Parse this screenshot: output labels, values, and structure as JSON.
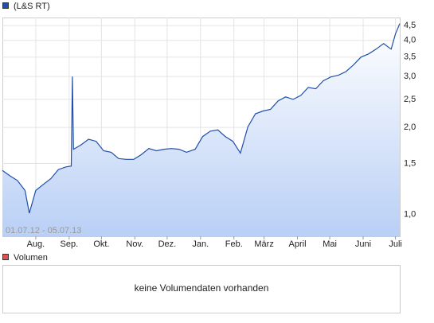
{
  "chart_data": {
    "type": "line",
    "log_scale": true,
    "grid": true,
    "annotation": "01.07.12 - 05.07.13",
    "x": [
      "01.07.12",
      "08.07.12",
      "15.07.12",
      "22.07.12",
      "26.07.12",
      "01.08.12",
      "08.08.12",
      "15.08.12",
      "22.08.12",
      "29.08.12",
      "03.09.12",
      "04.09.12",
      "05.09.12",
      "12.09.12",
      "19.09.12",
      "26.09.12",
      "03.10.12",
      "10.10.12",
      "17.10.12",
      "24.10.12",
      "31.10.12",
      "07.11.12",
      "14.11.12",
      "21.11.12",
      "28.11.12",
      "05.12.12",
      "12.12.12",
      "19.12.12",
      "27.12.12",
      "03.01.13",
      "10.01.13",
      "17.01.13",
      "24.01.13",
      "31.01.13",
      "07.02.13",
      "14.02.13",
      "21.02.13",
      "28.02.13",
      "07.03.13",
      "14.03.13",
      "21.03.13",
      "28.03.13",
      "04.04.13",
      "11.04.13",
      "18.04.13",
      "25.04.13",
      "02.05.13",
      "09.05.13",
      "16.05.13",
      "23.05.13",
      "30.05.13",
      "06.06.13",
      "13.06.13",
      "20.06.13",
      "27.06.13",
      "01.07.13",
      "05.07.13"
    ],
    "series": [
      {
        "name": "(L&S RT)",
        "color": "#1f4fa8",
        "values": [
          1.42,
          1.36,
          1.31,
          1.21,
          1.01,
          1.21,
          1.27,
          1.33,
          1.43,
          1.46,
          1.47,
          3.0,
          1.68,
          1.74,
          1.82,
          1.79,
          1.66,
          1.64,
          1.56,
          1.55,
          1.55,
          1.61,
          1.69,
          1.66,
          1.68,
          1.69,
          1.68,
          1.64,
          1.68,
          1.86,
          1.94,
          1.96,
          1.86,
          1.79,
          1.63,
          2.01,
          2.23,
          2.28,
          2.31,
          2.47,
          2.55,
          2.5,
          2.58,
          2.75,
          2.72,
          2.9,
          2.99,
          3.03,
          3.12,
          3.29,
          3.5,
          3.59,
          3.73,
          3.9,
          3.73,
          4.21,
          4.57
        ]
      }
    ],
    "xlim": [
      "01.07.12",
      "05.07.13"
    ],
    "xticks": [
      {
        "value": "01.08.12",
        "label": "Aug."
      },
      {
        "value": "01.09.12",
        "label": "Sep."
      },
      {
        "value": "01.10.12",
        "label": "Okt."
      },
      {
        "value": "01.11.12",
        "label": "Nov."
      },
      {
        "value": "01.12.12",
        "label": "Dez."
      },
      {
        "value": "01.01.13",
        "label": "Jan."
      },
      {
        "value": "01.02.13",
        "label": "Feb."
      },
      {
        "value": "01.03.13",
        "label": "März"
      },
      {
        "value": "01.04.13",
        "label": "April"
      },
      {
        "value": "01.05.13",
        "label": "Mai"
      },
      {
        "value": "01.06.13",
        "label": "Juni"
      },
      {
        "value": "01.07.13",
        "label": "Juli"
      }
    ],
    "ylim": [
      0.84,
      4.8
    ],
    "yticks": [
      {
        "value": 1,
        "label": "1,0"
      },
      {
        "value": 1.5,
        "label": "1,5"
      },
      {
        "value": 2,
        "label": "2,0"
      },
      {
        "value": 2.5,
        "label": "2,5"
      },
      {
        "value": 3,
        "label": "3,0"
      },
      {
        "value": 3.5,
        "label": "3,5"
      },
      {
        "value": 4,
        "label": "4,0"
      },
      {
        "value": 4.5,
        "label": "4,5"
      }
    ]
  },
  "volume": {
    "name": "Volumen",
    "color": "#d9534f",
    "message": "keine Volumendaten vorhanden"
  }
}
